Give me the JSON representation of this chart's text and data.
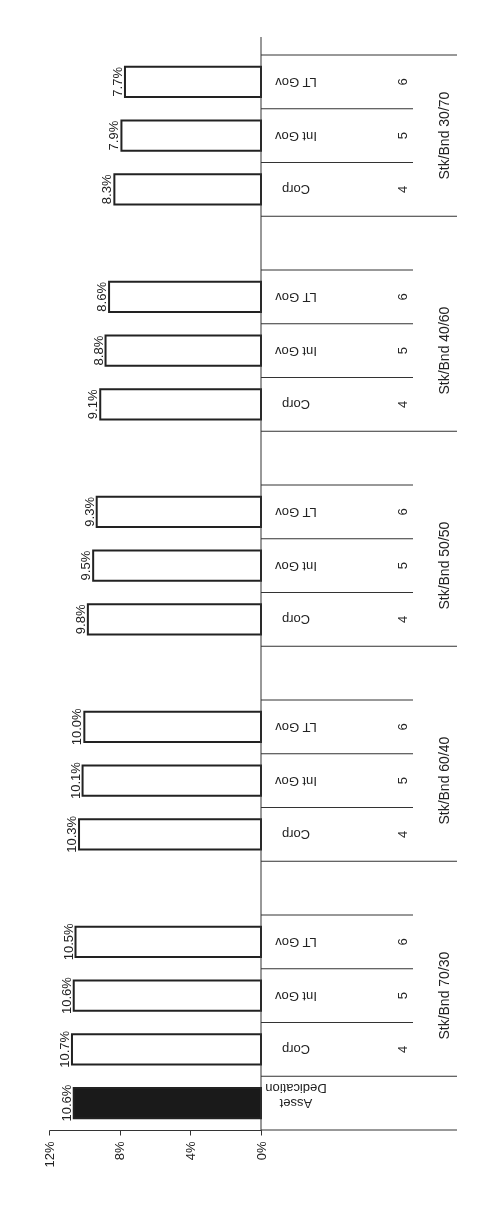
{
  "chart_data": {
    "type": "bar",
    "orientation": "horizontal",
    "categories": [
      "LT Gov\n6",
      "Int Gov\n5",
      "Corp\n4",
      null,
      "LT Gov\n6",
      "Int Gov\n5",
      "Corp\n4",
      null,
      "LT Gov\n6",
      "Int Gov\n5",
      "Corp\n4",
      null,
      "LT Gov\n6",
      "Int Gov\n5",
      "Corp\n4",
      null,
      "LT Gov\n6",
      "Int Gov\n5",
      "Corp\n4",
      "Asset Dedication"
    ],
    "values": [
      7.7,
      7.9,
      8.3,
      null,
      8.6,
      8.8,
      9.1,
      null,
      9.3,
      9.5,
      9.8,
      null,
      10.0,
      10.1,
      10.3,
      null,
      10.5,
      10.6,
      10.7,
      10.6
    ],
    "value_labels": [
      "7.7%",
      "7.9%",
      "8.3%",
      null,
      "8.6%",
      "8.8%",
      "9.1%",
      null,
      "9.3%",
      "9.5%",
      "9.8%",
      null,
      "10.0%",
      "10.1%",
      "10.3%",
      null,
      "10.5%",
      "10.6%",
      "10.7%",
      "10.6%"
    ],
    "colors": [
      "#ffffff",
      "#ffffff",
      "#ffffff",
      null,
      "#ffffff",
      "#ffffff",
      "#ffffff",
      null,
      "#ffffff",
      "#ffffff",
      "#ffffff",
      null,
      "#ffffff",
      "#ffffff",
      "#ffffff",
      null,
      "#ffffff",
      "#ffffff",
      "#ffffff",
      "#1a1a1a"
    ],
    "annotations": [
      "Stk/Bnd 30/70",
      "Stk/Bnd 40/60",
      "Stk/Bnd 50/50",
      "Stk/Bnd 60/40",
      "Stk/Bnd 70/30"
    ],
    "xlim": [
      12,
      0
    ],
    "xticks": [
      {
        "value": 12,
        "label": "12%"
      },
      {
        "value": 8,
        "label": "8%"
      },
      {
        "value": 4,
        "label": "4%"
      },
      {
        "value": 0,
        "label": "0%"
      }
    ],
    "grid": false
  }
}
